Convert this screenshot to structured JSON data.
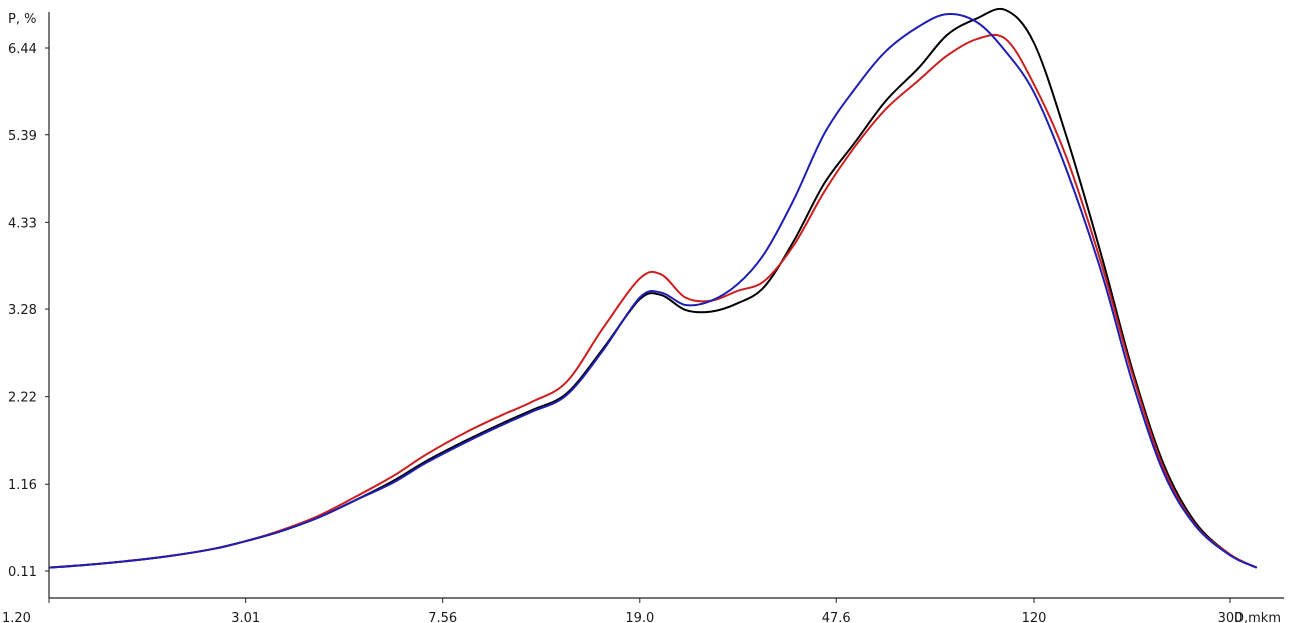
{
  "chart_data": {
    "type": "line",
    "title": "",
    "xlabel": "D,mkm",
    "ylabel": "P, %",
    "x_scale": "log",
    "x_ticks": [
      "1.20",
      "3.01",
      "7.56",
      "19.0",
      "47.6",
      "120",
      "300"
    ],
    "y_ticks": [
      "0.11",
      "1.16",
      "2.22",
      "3.28",
      "4.33",
      "5.39",
      "6.44"
    ],
    "xlim": [
      1.2,
      480
    ],
    "ylim": [
      0.11,
      6.75
    ],
    "grid": false,
    "legend": "none",
    "x": [
      1.2,
      1.6,
      2.1,
      2.6,
      3.0,
      3.5,
      4.2,
      5.0,
      6.0,
      7.0,
      8.5,
      10.0,
      11.5,
      13.5,
      16.0,
      19.0,
      21.0,
      23.5,
      26.5,
      30.0,
      34.0,
      39.0,
      45.0,
      52.0,
      60.0,
      70.0,
      80.0,
      92.0,
      105.0,
      120.0,
      140.0,
      165.0,
      190.0,
      220.0,
      255.0,
      300.0,
      340.0
    ],
    "series": [
      {
        "color": "#000000",
        "values": [
          0.15,
          0.21,
          0.29,
          0.38,
          0.47,
          0.58,
          0.75,
          0.96,
          1.2,
          1.44,
          1.7,
          1.9,
          2.06,
          2.26,
          2.8,
          3.4,
          3.45,
          3.27,
          3.25,
          3.35,
          3.55,
          4.1,
          4.8,
          5.3,
          5.8,
          6.2,
          6.6,
          6.8,
          6.9,
          6.5,
          5.35,
          3.9,
          2.55,
          1.4,
          0.7,
          0.31,
          0.15
        ]
      },
      {
        "color": "#cc1f1f",
        "values": [
          0.15,
          0.21,
          0.29,
          0.38,
          0.47,
          0.59,
          0.77,
          1.0,
          1.26,
          1.52,
          1.8,
          2.0,
          2.16,
          2.4,
          3.05,
          3.65,
          3.7,
          3.42,
          3.38,
          3.5,
          3.62,
          4.05,
          4.7,
          5.25,
          5.7,
          6.05,
          6.35,
          6.55,
          6.55,
          6.0,
          5.1,
          3.8,
          2.5,
          1.35,
          0.67,
          0.31,
          0.15
        ]
      },
      {
        "color": "#1f1fb4",
        "values": [
          0.15,
          0.21,
          0.29,
          0.38,
          0.47,
          0.58,
          0.75,
          0.96,
          1.18,
          1.42,
          1.68,
          1.88,
          2.04,
          2.24,
          2.78,
          3.42,
          3.48,
          3.33,
          3.38,
          3.58,
          3.95,
          4.6,
          5.4,
          5.95,
          6.4,
          6.7,
          6.85,
          6.75,
          6.4,
          5.9,
          4.95,
          3.7,
          2.4,
          1.3,
          0.66,
          0.3,
          0.15
        ]
      }
    ]
  }
}
